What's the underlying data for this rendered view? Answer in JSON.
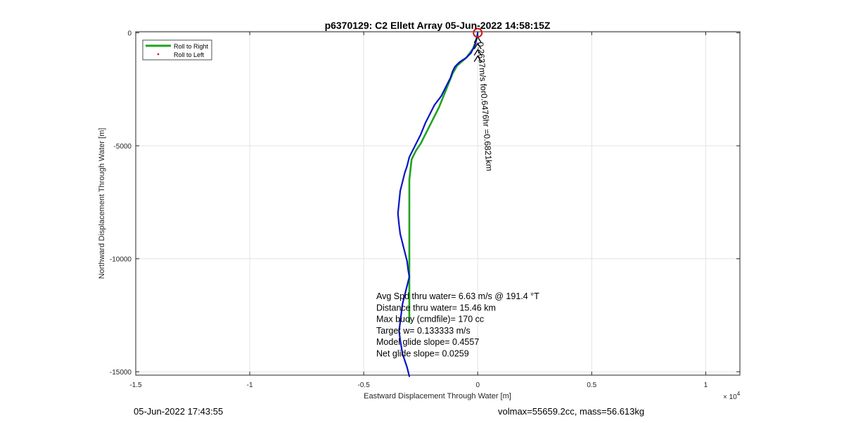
{
  "chart_data": {
    "type": "line",
    "title": "p6370129: C2 Ellett Array 05-Jun-2022 14:58:15Z",
    "xlabel": "Eastward Displacement Through Water [m]",
    "ylabel": "Northward Displacement Through Water [m]",
    "x_multiplier_label": "× 10",
    "x_multiplier_exponent": "4",
    "xlim": [
      -1.5,
      1.15
    ],
    "ylim": [
      -15150,
      50
    ],
    "xticks": [
      -1.5,
      -1,
      -0.5,
      0,
      0.5,
      1
    ],
    "xtick_labels": [
      "-1.5",
      "-1",
      "-0.5",
      "0",
      "0.5",
      "1"
    ],
    "yticks": [
      0,
      -5000,
      -10000,
      -15000
    ],
    "ytick_labels": [
      "0",
      "-5000",
      "-10000",
      "-15000"
    ],
    "grid": true,
    "legend": {
      "placement": "top-left",
      "entries": [
        {
          "name": "Roll to Right",
          "color": "#1ea31e",
          "style": "line"
        },
        {
          "name": "Roll to Left",
          "color": "#e02020",
          "style": "dot"
        }
      ]
    },
    "series": [
      {
        "name": "Roll to Right",
        "color": "#1ea31e",
        "x": [
          0,
          -0.02,
          -0.05,
          -0.09,
          -0.11,
          -0.13,
          -0.15,
          -0.17,
          -0.2,
          -0.23,
          -0.25,
          -0.27,
          -0.28,
          -0.29,
          -0.3,
          -0.3,
          -0.3,
          -0.3,
          -0.3,
          -0.3,
          -0.3,
          -0.3
        ],
        "y": [
          -100,
          -700,
          -1100,
          -1450,
          -1800,
          -2300,
          -2800,
          -3300,
          -3900,
          -4500,
          -4900,
          -5200,
          -5400,
          -5600,
          -6500,
          -7500,
          -8500,
          -9500,
          -10500,
          -11000,
          -12000,
          -12800
        ]
      },
      {
        "name": "track",
        "color": "#0a14c8",
        "x": [
          0,
          -0.01,
          -0.03,
          -0.05,
          -0.08,
          -0.1,
          -0.11,
          -0.12,
          -0.14,
          -0.16,
          -0.19,
          -0.21,
          -0.23,
          -0.25,
          -0.27,
          -0.28,
          -0.29,
          -0.3,
          -0.305,
          -0.31,
          -0.32,
          -0.33,
          -0.34,
          -0.345,
          -0.35,
          -0.345,
          -0.34,
          -0.33,
          -0.32,
          -0.31,
          -0.305,
          -0.3,
          -0.31,
          -0.32,
          -0.33,
          -0.335,
          -0.34,
          -0.345,
          -0.34,
          -0.335,
          -0.33,
          -0.32,
          -0.31,
          -0.305,
          -0.3
        ],
        "y": [
          0,
          -500,
          -900,
          -1100,
          -1300,
          -1500,
          -1700,
          -2000,
          -2400,
          -2800,
          -3200,
          -3600,
          -4000,
          -4500,
          -4900,
          -5100,
          -5300,
          -5500,
          -5700,
          -5900,
          -6200,
          -6600,
          -7000,
          -7500,
          -8000,
          -8500,
          -8900,
          -9300,
          -9700,
          -10100,
          -10500,
          -10800,
          -11200,
          -11600,
          -12000,
          -12400,
          -12800,
          -13200,
          -13600,
          -13900,
          -14200,
          -14500,
          -14800,
          -15000,
          -15200
        ]
      }
    ],
    "marker": {
      "x": 0,
      "y": 0,
      "color": "#d01818",
      "shape": "circle"
    },
    "annotation_rotated": "0.2637m/s for0.6476hr =0.6821km",
    "stats": [
      "Avg Spd thru water=  6.63 m/s @ 191.4 °T",
      "Distance thru water= 15.46 km",
      "Max buoy (cmdfile)= 170 cc",
      "Target w= 0.133333 m/s",
      "Model glide slope= 0.4557",
      "Net glide slope= 0.0259"
    ]
  },
  "footer": {
    "left": "05-Jun-2022 17:43:55",
    "right": "volmax=55659.2cc, mass=56.613kg"
  }
}
